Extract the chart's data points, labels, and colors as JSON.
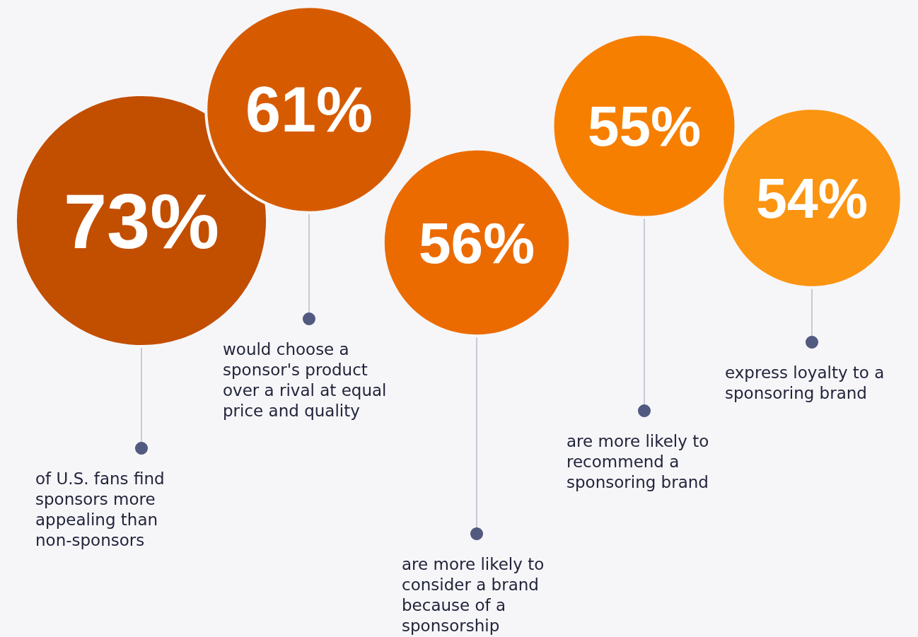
{
  "chart_data": {
    "type": "other",
    "categories": [
      "of U.S. fans find sponsors more appealing than non-sponsors",
      "would choose a sponsor's product over a rival at equal price and quality",
      "are more likely to consider a brand because of a sponsorship",
      "are more likely to recommend a sponsoring brand",
      "express loyalty to a sponsoring brand"
    ],
    "values": [
      73,
      61,
      56,
      55,
      54
    ],
    "value_labels": [
      "73%",
      "61%",
      "56%",
      "55%",
      "54%"
    ],
    "colors": [
      "#c24e00",
      "#d65b00",
      "#eb6b00",
      "#f77f00",
      "#fb9410"
    ]
  }
}
